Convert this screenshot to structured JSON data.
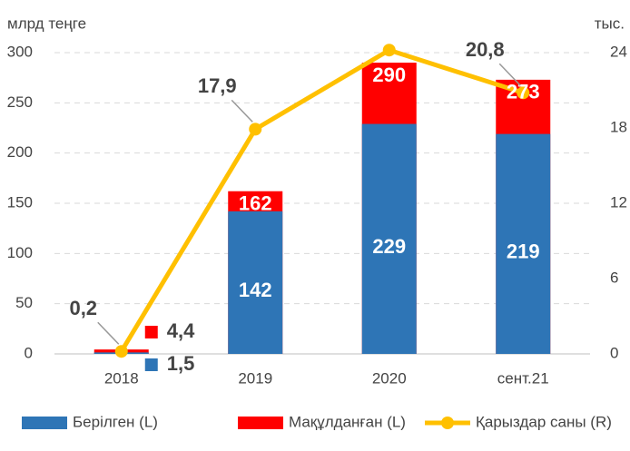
{
  "chart_data": {
    "type": "bar-line",
    "y_axis_label": "млрд теңге",
    "y2_axis_label": "тыс.",
    "categories": [
      "2018",
      "2019",
      "2020",
      "сент.21"
    ],
    "ylim": [
      0,
      300
    ],
    "yticks": [
      0,
      50,
      100,
      150,
      200,
      250,
      300
    ],
    "y2lim": [
      0,
      24
    ],
    "y2ticks": [
      0,
      6,
      12,
      18,
      24
    ],
    "grid": true,
    "legend": "bottom",
    "series": [
      {
        "name": "Берілген (L)",
        "type": "bar",
        "color": "#2E75B6",
        "values": [
          1.5,
          142,
          229,
          219
        ],
        "value_labels": [
          "1,5",
          "142",
          "229",
          "219"
        ]
      },
      {
        "name": "Мақұлданған (L)",
        "type": "bar",
        "color": "#FF0000",
        "values": [
          4.4,
          162,
          290,
          273
        ],
        "value_labels": [
          "4,4",
          "162",
          "290",
          "273"
        ]
      },
      {
        "name": "Қарыздар саны (R)",
        "type": "line",
        "axis": "y2",
        "color": "#FFC000",
        "values": [
          0.2,
          17.9,
          24.2,
          20.8
        ],
        "value_labels": [
          "0,2",
          "17,9",
          null,
          "20,8"
        ]
      }
    ]
  }
}
